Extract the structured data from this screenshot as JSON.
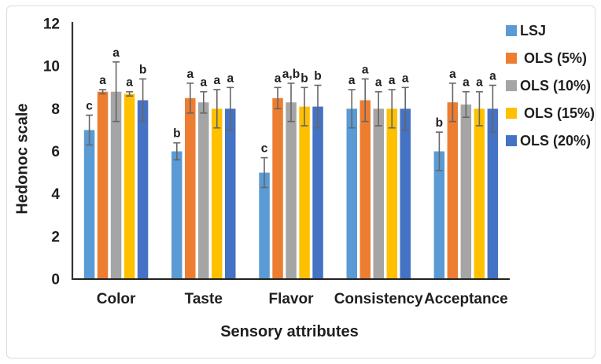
{
  "figure": {
    "background": "#FFFFFF",
    "border_color": "#DCDCDC"
  },
  "chart_data": {
    "type": "bar",
    "title": "",
    "xlabel": "Sensory attributes",
    "ylabel": "Hedonoc scale",
    "ylim": [
      0,
      12
    ],
    "y_ticks": [
      0,
      2,
      4,
      6,
      8,
      10,
      12
    ],
    "grid": false,
    "legend_position": "right",
    "error_bars": true,
    "error_bar_color": "#666666",
    "axis_color": "#333333",
    "text_color": "#1f1f1f",
    "categories": [
      "Color",
      "Taste",
      "Flavor",
      "Consistency",
      "Acceptance"
    ],
    "series": [
      {
        "name": "LSJ",
        "label": "LSJ",
        "color": "#5B9BD5",
        "values": [
          7.0,
          6.0,
          5.0,
          8.0,
          6.0
        ],
        "errors": [
          0.7,
          0.4,
          0.7,
          0.9,
          0.9
        ],
        "letters": [
          "c",
          "b",
          "c",
          "a",
          "b"
        ]
      },
      {
        "name": "OLS (5%)",
        "label": " OLS (5%)",
        "color": "#ED7D31",
        "values": [
          8.8,
          8.5,
          8.5,
          8.4,
          8.3
        ],
        "errors": [
          0.1,
          0.7,
          0.5,
          1.0,
          0.9
        ],
        "letters": [
          "a",
          "a",
          "a",
          "a",
          "a"
        ]
      },
      {
        "name": "OLS (10%)",
        "label": "OLS (10%)",
        "color": "#A5A5A5",
        "values": [
          8.8,
          8.3,
          8.3,
          8.0,
          8.2
        ],
        "errors": [
          1.4,
          0.5,
          0.9,
          0.8,
          0.6
        ],
        "letters": [
          "a",
          "a",
          "a,b",
          "a",
          "a"
        ]
      },
      {
        "name": "OLS (15%)",
        "label": " OLS (15%)",
        "color": "#FFC000",
        "values": [
          8.7,
          8.0,
          8.1,
          8.0,
          8.0
        ],
        "errors": [
          0.1,
          0.9,
          0.9,
          0.9,
          0.8
        ],
        "letters": [
          "a",
          "a",
          "b",
          "a",
          "a"
        ]
      },
      {
        "name": "OLS (20%)",
        "label": "OLS (20%)",
        "color": "#4472C4",
        "values": [
          8.4,
          8.0,
          8.1,
          8.0,
          8.0
        ],
        "errors": [
          1.0,
          1.0,
          1.0,
          1.0,
          1.1
        ],
        "letters": [
          "b",
          "a",
          "b",
          "a",
          "a"
        ]
      }
    ]
  }
}
